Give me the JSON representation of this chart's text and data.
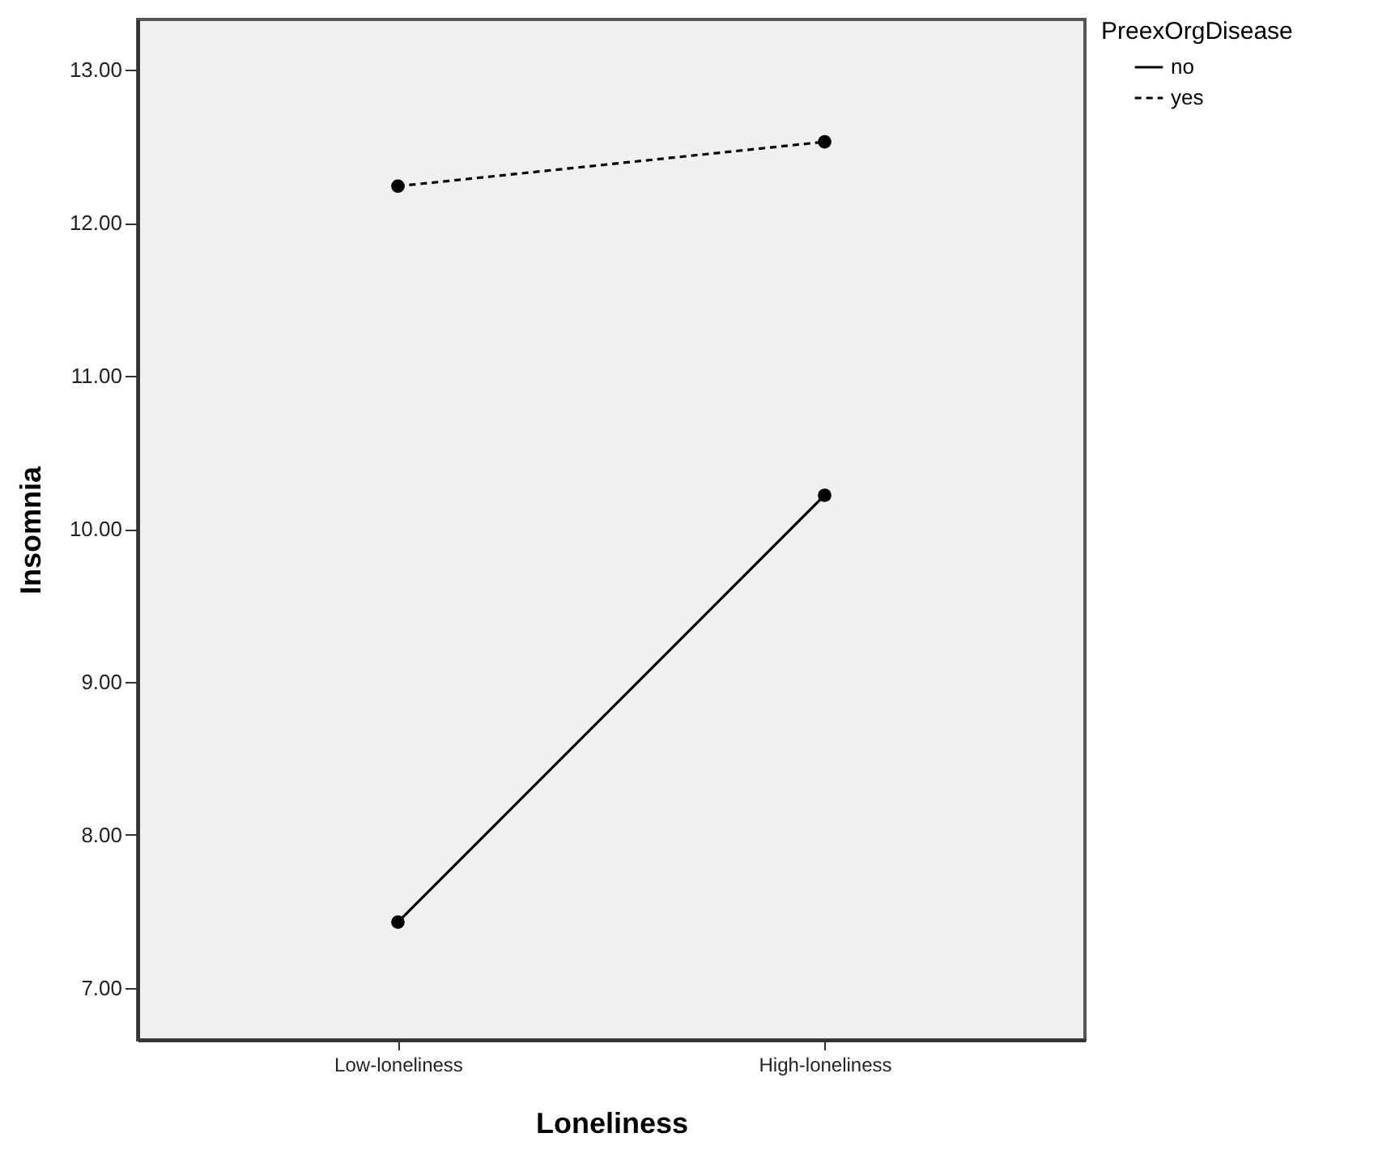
{
  "chart_data": {
    "type": "line",
    "xlabel": "Loneliness",
    "ylabel": "Insomnia",
    "legend_title": "PreexOrgDisease",
    "categories": [
      "Low-loneliness",
      "High-loneliness"
    ],
    "series": [
      {
        "name": "no",
        "color": "#000000",
        "line_style": "solid",
        "values": [
          7.43,
          10.22
        ]
      },
      {
        "name": "yes",
        "color": "#000000",
        "line_style": "dashed",
        "values": [
          12.24,
          12.53
        ]
      }
    ],
    "ylim": [
      6.66,
      13.33
    ],
    "yticks": [
      {
        "value": 7,
        "label": "7.00"
      },
      {
        "value": 8,
        "label": "8.00"
      },
      {
        "value": 9,
        "label": "9.00"
      },
      {
        "value": 10,
        "label": "10.00"
      },
      {
        "value": 11,
        "label": "11.00"
      },
      {
        "value": 12,
        "label": "12.00"
      },
      {
        "value": 13,
        "label": "13.00"
      }
    ],
    "grid": false,
    "legend": "top right",
    "marker": "circle"
  }
}
